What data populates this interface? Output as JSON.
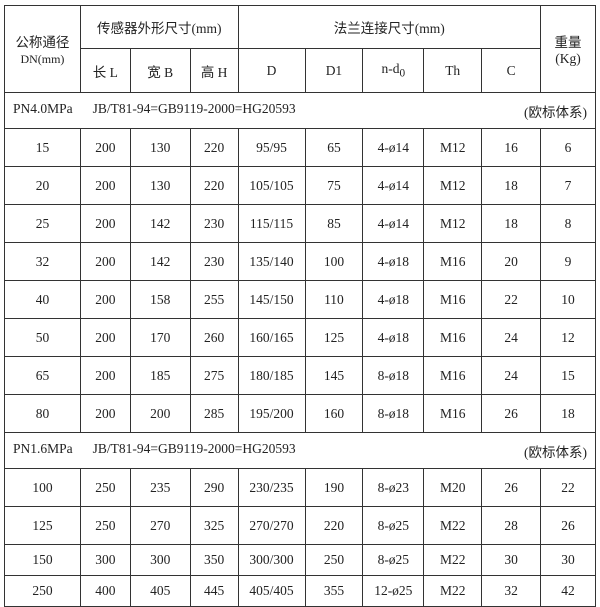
{
  "header": {
    "dn_label_1": "公称通径",
    "dn_label_2": "DN(mm)",
    "sensor_group": "传感器外形尺寸(mm)",
    "flange_group": "法兰连接尺寸(mm)",
    "weight_1": "重量",
    "weight_2": "(Kg)",
    "cols": [
      "长 L",
      "宽 B",
      "高 H",
      "D",
      "D1",
      "n-d",
      "Th",
      "C"
    ],
    "nd_subscript": "0"
  },
  "sections": [
    {
      "pressure": "PN4.0MPa",
      "standard": "JB/T81-94=GB9119-2000=HG20593",
      "system": "(欧标体系)",
      "rows": [
        [
          "15",
          "200",
          "130",
          "220",
          "95/95",
          "65",
          "4-ø14",
          "M12",
          "16",
          "6"
        ],
        [
          "20",
          "200",
          "130",
          "220",
          "105/105",
          "75",
          "4-ø14",
          "M12",
          "18",
          "7"
        ],
        [
          "25",
          "200",
          "142",
          "230",
          "115/115",
          "85",
          "4-ø14",
          "M12",
          "18",
          "8"
        ],
        [
          "32",
          "200",
          "142",
          "230",
          "135/140",
          "100",
          "4-ø18",
          "M16",
          "20",
          "9"
        ],
        [
          "40",
          "200",
          "158",
          "255",
          "145/150",
          "110",
          "4-ø18",
          "M16",
          "22",
          "10"
        ],
        [
          "50",
          "200",
          "170",
          "260",
          "160/165",
          "125",
          "4-ø18",
          "M16",
          "24",
          "12"
        ],
        [
          "65",
          "200",
          "185",
          "275",
          "180/185",
          "145",
          "8-ø18",
          "M16",
          "24",
          "15"
        ],
        [
          "80",
          "200",
          "200",
          "285",
          "195/200",
          "160",
          "8-ø18",
          "M16",
          "26",
          "18"
        ]
      ]
    },
    {
      "pressure": "PN1.6MPa",
      "standard": "JB/T81-94=GB9119-2000=HG20593",
      "system": "(欧标体系)",
      "rows": [
        [
          "100",
          "250",
          "235",
          "290",
          "230/235",
          "190",
          "8-ø23",
          "M20",
          "26",
          "22"
        ],
        [
          "125",
          "250",
          "270",
          "325",
          "270/270",
          "220",
          "8-ø25",
          "M22",
          "28",
          "26"
        ],
        [
          "150",
          "300",
          "300",
          "350",
          "300/300",
          "250",
          "8-ø25",
          "M22",
          "30",
          "30"
        ],
        [
          "250",
          "400",
          "405",
          "445",
          "405/405",
          "355",
          "12-ø25",
          "M22",
          "32",
          "42"
        ]
      ]
    }
  ]
}
